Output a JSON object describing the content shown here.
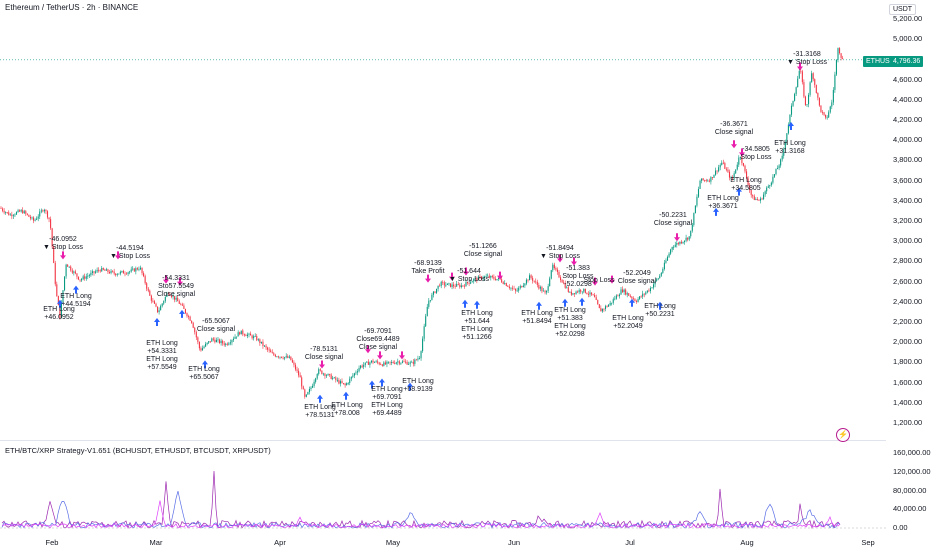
{
  "header": {
    "title": "Ethereum / TetherUS · 2h · BINANCE",
    "currency": "USDT"
  },
  "price_axis": {
    "labels": [
      "5,200.00",
      "5,000.00",
      "4,800.00",
      "4,600.00",
      "4,400.00",
      "4,200.00",
      "4,000.00",
      "3,800.00",
      "3,600.00",
      "3,400.00",
      "3,200.00",
      "3,000.00",
      "2,800.00",
      "2,600.00",
      "2,400.00",
      "2,200.00",
      "2,000.00",
      "1,800.00",
      "1,600.00",
      "1,400.00",
      "1,200.00"
    ],
    "values": [
      5200,
      5000,
      4800,
      4600,
      4400,
      4200,
      4000,
      3800,
      3600,
      3400,
      3200,
      3000,
      2800,
      2600,
      2400,
      2200,
      2000,
      1800,
      1600,
      1400,
      1200
    ],
    "symbol_badge": "ETHUSDT",
    "last_price_badge": "4,796.36",
    "last_price": 4796.36
  },
  "indicator": {
    "title": "ETH/BTC/XRP Strategy-V1.651 (BCHUSDT, ETHUSDT, BTCUSDT, XRPUSDT)",
    "axis_labels": [
      "160,000.00",
      "120,000.00",
      "80,000.00",
      "40,000.00",
      "0.00"
    ],
    "axis_values": [
      160000,
      120000,
      80000,
      40000,
      0
    ]
  },
  "time_axis": {
    "labels": [
      "Feb",
      "Mar",
      "Apr",
      "May",
      "Jun",
      "Jul",
      "Aug",
      "Sep"
    ]
  },
  "annotations": [
    {
      "text": "-46.0952\n▼ Stop Loss"
    },
    {
      "text": "ETH Long\n+44.5194"
    },
    {
      "text": "ETH Long\n+46.0952"
    },
    {
      "text": "-44.5194\n▼ Stop Loss"
    },
    {
      "text": "-54.3331\nSto57.5549\nClose signal"
    },
    {
      "text": "-65.5067\nClose signal"
    },
    {
      "text": "ETH Long\n+54.3331\nETH Long\n+57.5549"
    },
    {
      "text": "ETH Long\n+65.5067"
    },
    {
      "text": "-78.5131\nClose signal"
    },
    {
      "text": "ETH Long\n+78.5131"
    },
    {
      "text": "ETH Long\n+78.008"
    },
    {
      "text": "-69.7091\nClose69.4489\nClose signal"
    },
    {
      "text": "ETH Long\n+69.7091\nETH Long\n+69.4489"
    },
    {
      "text": "-68.9139\nTake Profit"
    },
    {
      "text": "ETH Long\n+68.9139"
    },
    {
      "text": "-51.644\n▼ Stop Loss"
    },
    {
      "text": "-51.1266\nClose signal"
    },
    {
      "text": "ETH Long\n+51.644\nETH Long\n+51.1266"
    },
    {
      "text": "-51.8494\n▼ Stop Loss"
    },
    {
      "text": "-51.383\nStop Loss\n-52.0298"
    },
    {
      "text": "Stop Loss"
    },
    {
      "text": "-52.2049\nClose signal"
    },
    {
      "text": "ETH Long\n+51.8494"
    },
    {
      "text": "ETH Long\n+51.383\nETH Long\n+52.0298"
    },
    {
      "text": "ETH Long\n+52.2049"
    },
    {
      "text": "ETH Long\n+50.2231"
    },
    {
      "text": "-50.2231\nClose signal"
    },
    {
      "text": "-36.3671\nClose signal"
    },
    {
      "text": "-34.5805\nStop Loss"
    },
    {
      "text": "ETH Long\n+36.3671"
    },
    {
      "text": "ETH Long\n+34.5805"
    },
    {
      "text": "ETH Long\n+31.3168"
    },
    {
      "text": "-31.3168\n▼ Stop Loss"
    }
  ],
  "colors": {
    "up": "#089981",
    "down": "#f23645",
    "signal_long": "#2962ff",
    "signal_exit": "#e91eab",
    "ind_purple": "#9c27b0",
    "ind_blue": "#5b6fe6",
    "ind_pink": "#e040fb"
  },
  "icons": {
    "long_marker": "arrow-up-icon",
    "exit_marker": "arrow-down-icon",
    "event": "lightning-icon"
  }
}
